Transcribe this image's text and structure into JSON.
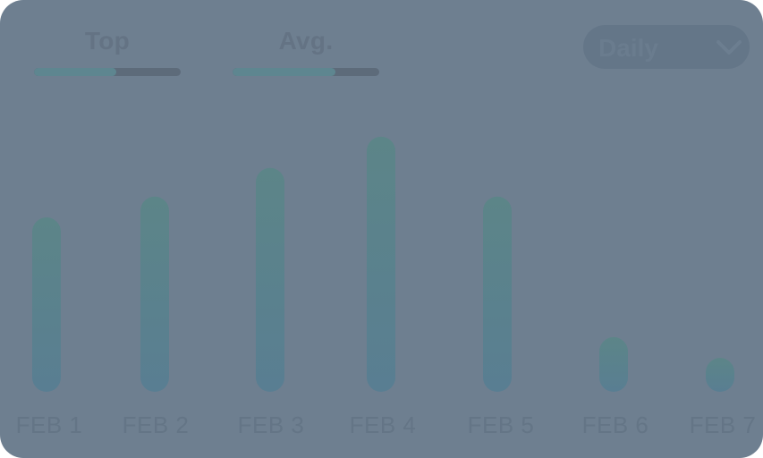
{
  "metrics": [
    {
      "label": "Top",
      "level": 0.56
    },
    {
      "label": "Avg.",
      "level": 0.7
    }
  ],
  "period_select": {
    "value": "Daily"
  },
  "colors": {
    "card_bg": "#6e7f90",
    "bar_top": "#5c8588",
    "bar_bottom": "#597e92",
    "track": "#5d6b7a",
    "fill": "#5e8690"
  },
  "icons": {
    "dropdown": "chevron-down-icon"
  },
  "chart_data": {
    "type": "bar",
    "categories": [
      "FEB 1",
      "FEB 2",
      "FEB 3",
      "FEB 4",
      "FEB 5",
      "FEB 6",
      "FEB 7"
    ],
    "values": [
      67,
      75,
      86,
      98,
      75,
      21,
      13
    ],
    "ylim": [
      0,
      100
    ],
    "grid": false,
    "title": "",
    "xlabel": "",
    "ylabel": ""
  }
}
